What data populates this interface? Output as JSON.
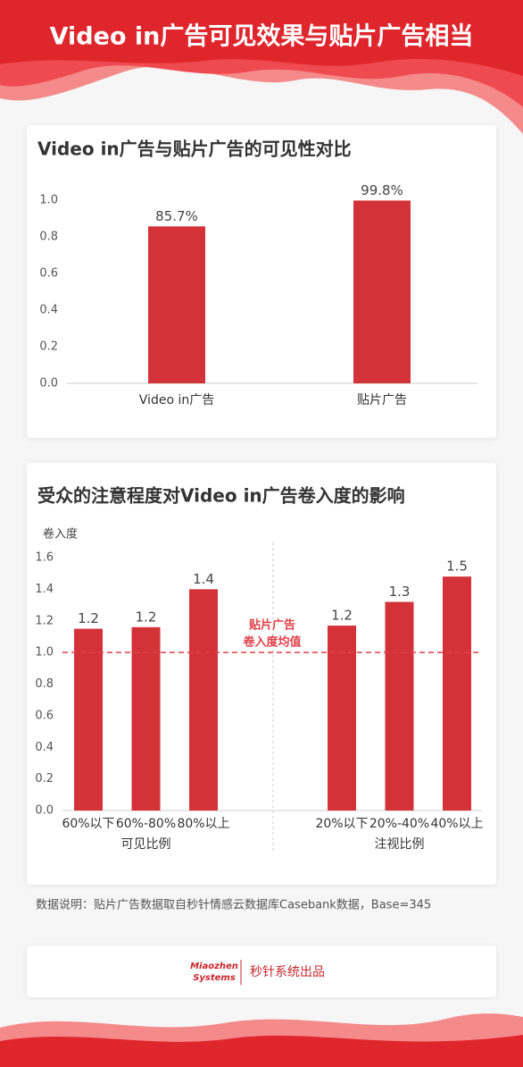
{
  "header": {
    "title": "Video in广告可见效果与贴片广告相当"
  },
  "chart_data": [
    {
      "type": "bar",
      "title": "Video in广告与贴片广告的可见性对比",
      "categories": [
        "Video in广告",
        "贴片广告"
      ],
      "values": [
        0.857,
        0.998
      ],
      "value_labels": [
        "85.7%",
        "99.8%"
      ],
      "color": "#d33338",
      "ylim": [
        0,
        1
      ],
      "yticks": [
        {
          "value": 0,
          "label": "0.0"
        },
        {
          "value": 0.2,
          "label": "0.2"
        },
        {
          "value": 0.4,
          "label": "0.4"
        },
        {
          "value": 0.6,
          "label": "0.6"
        },
        {
          "value": 0.8,
          "label": "0.8"
        },
        {
          "value": 1,
          "label": "1.0"
        }
      ]
    },
    {
      "type": "grouped-bar",
      "title": "受众的注意程度对Video in广告卷入度的影响",
      "ylabel": "卷入度",
      "groups": [
        {
          "name": "可见比例",
          "categories": [
            "60%以下",
            "60%-80%",
            "80%以上"
          ],
          "values": [
            1.15,
            1.16,
            1.4
          ],
          "value_labels": [
            "1.2",
            "1.2",
            "1.4"
          ]
        },
        {
          "name": "注视比例",
          "categories": [
            "20%以下",
            "20%-40%",
            "40%以上"
          ],
          "values": [
            1.17,
            1.32,
            1.48
          ],
          "value_labels": [
            "1.2",
            "1.3",
            "1.5"
          ]
        }
      ],
      "color": "#d33338",
      "ylim": [
        0,
        1.6
      ],
      "yticks": [
        {
          "value": 0,
          "label": "0.0"
        },
        {
          "value": 0.2,
          "label": "0.2"
        },
        {
          "value": 0.4,
          "label": "0.4"
        },
        {
          "value": 0.6,
          "label": "0.6"
        },
        {
          "value": 0.8,
          "label": "0.8"
        },
        {
          "value": 1,
          "label": "1.0"
        },
        {
          "value": 1.2,
          "label": "1.2"
        },
        {
          "value": 1.4,
          "label": "1.4"
        },
        {
          "value": 1.6,
          "label": "1.6"
        }
      ],
      "reference_line": {
        "value": 1,
        "label": [
          "贴片广告",
          "卷入度均值"
        ],
        "color": "#e04048"
      }
    }
  ],
  "footnote": "数据说明：贴片广告数据取自秒针情感云数据库Casebank数据，Base=345",
  "footer": {
    "logo": [
      "Miaozhen",
      "Systems"
    ],
    "text": "秒针系统出品"
  }
}
